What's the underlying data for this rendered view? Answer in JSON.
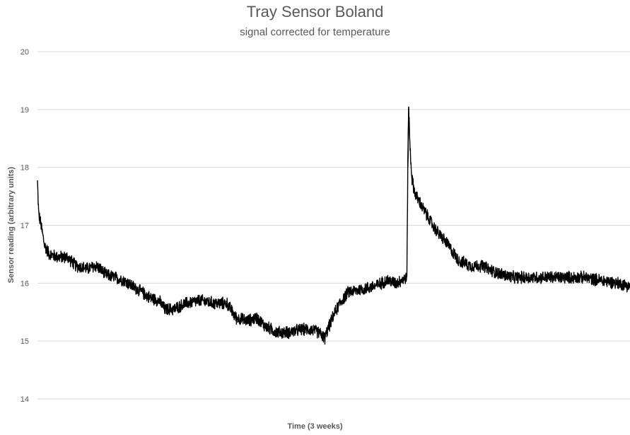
{
  "chart_data": {
    "type": "line",
    "title": "Tray Sensor Boland",
    "subtitle": "signal corrected for temperature",
    "xlabel": "Time (3 weeks)",
    "ylabel": "Sensor reading (arbitrary units)",
    "ylim": [
      14,
      20
    ],
    "yticks": [
      "14",
      "15",
      "16",
      "17",
      "18",
      "19",
      "20"
    ],
    "grid": true,
    "legend": "none",
    "colors": {
      "line": "#000000",
      "grid": "#d9d9d9",
      "text": "#595959"
    },
    "x_unit": "fraction of the 3-week time span",
    "series": [
      {
        "noise": 0.12,
        "points": [
          [
            0.0,
            17.75
          ],
          [
            0.002,
            17.2
          ],
          [
            0.006,
            17.0
          ],
          [
            0.012,
            16.65
          ],
          [
            0.02,
            16.5
          ],
          [
            0.035,
            16.45
          ],
          [
            0.05,
            16.45
          ],
          [
            0.065,
            16.3
          ],
          [
            0.085,
            16.25
          ],
          [
            0.1,
            16.3
          ],
          [
            0.115,
            16.15
          ],
          [
            0.13,
            16.1
          ],
          [
            0.145,
            16.05
          ],
          [
            0.16,
            15.95
          ],
          [
            0.175,
            15.85
          ],
          [
            0.19,
            15.75
          ],
          [
            0.205,
            15.7
          ],
          [
            0.215,
            15.55
          ],
          [
            0.23,
            15.55
          ],
          [
            0.25,
            15.65
          ],
          [
            0.275,
            15.7
          ],
          [
            0.3,
            15.65
          ],
          [
            0.32,
            15.65
          ],
          [
            0.335,
            15.4
          ],
          [
            0.355,
            15.35
          ],
          [
            0.37,
            15.4
          ],
          [
            0.385,
            15.25
          ],
          [
            0.405,
            15.15
          ],
          [
            0.425,
            15.15
          ],
          [
            0.445,
            15.2
          ],
          [
            0.46,
            15.2
          ],
          [
            0.475,
            15.15
          ],
          [
            0.485,
            15.05
          ],
          [
            0.49,
            15.2
          ],
          [
            0.5,
            15.45
          ],
          [
            0.51,
            15.65
          ],
          [
            0.525,
            15.85
          ],
          [
            0.55,
            15.9
          ],
          [
            0.57,
            15.95
          ],
          [
            0.59,
            16.05
          ],
          [
            0.605,
            16.0
          ],
          [
            0.6235,
            16.1
          ],
          [
            0.625,
            18.0
          ],
          [
            0.6265,
            19.05
          ],
          [
            0.6285,
            18.4
          ],
          [
            0.632,
            17.8
          ],
          [
            0.637,
            17.55
          ],
          [
            0.65,
            17.3
          ],
          [
            0.67,
            16.95
          ],
          [
            0.69,
            16.7
          ],
          [
            0.71,
            16.4
          ],
          [
            0.73,
            16.3
          ],
          [
            0.75,
            16.3
          ],
          [
            0.77,
            16.2
          ],
          [
            0.8,
            16.1
          ],
          [
            0.83,
            16.1
          ],
          [
            0.86,
            16.1
          ],
          [
            0.89,
            16.1
          ],
          [
            0.92,
            16.1
          ],
          [
            0.95,
            16.05
          ],
          [
            0.98,
            16.0
          ],
          [
            1.0,
            15.95
          ]
        ]
      }
    ]
  }
}
